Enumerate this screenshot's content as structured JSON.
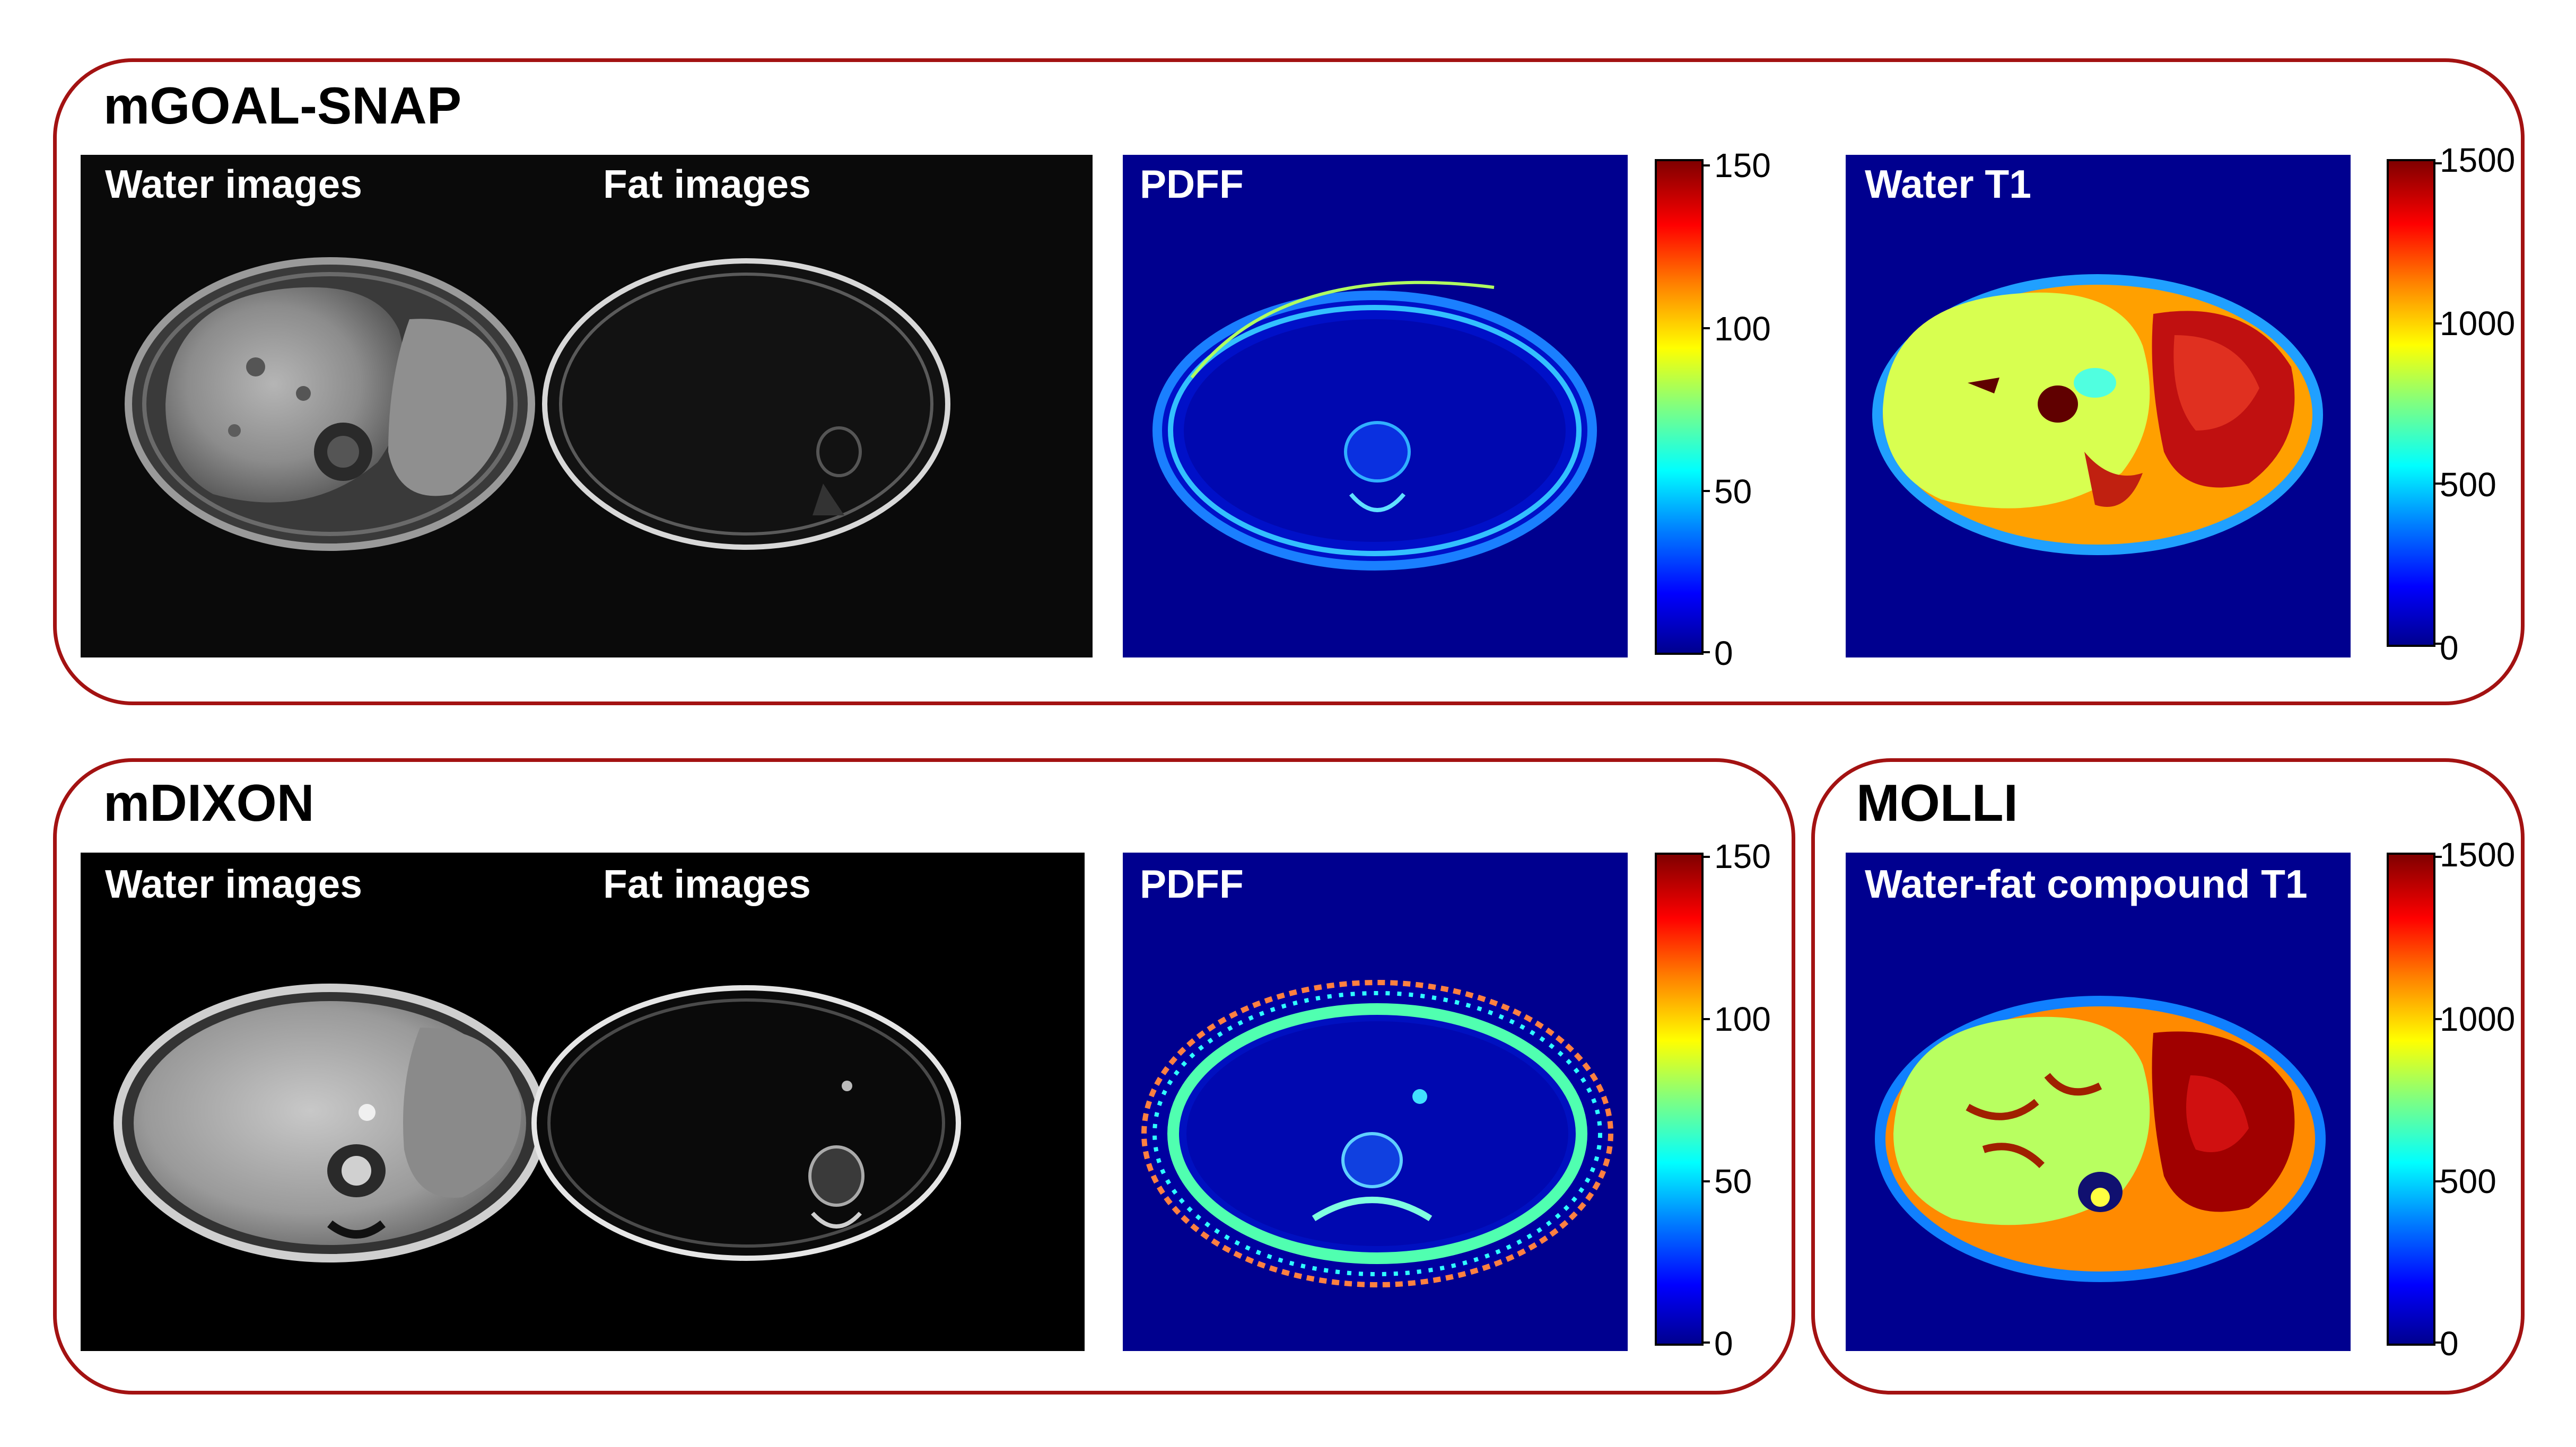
{
  "groups": {
    "goal_snap": {
      "title": "mGOAL-SNAP",
      "water_label": "Water images",
      "fat_label": "Fat images",
      "pdff_label": "PDFF",
      "t1_label": "Water T1",
      "pdff_scale": [
        "150",
        "100",
        "50",
        "0"
      ],
      "t1_scale": [
        "1500",
        "1000",
        "500",
        "0"
      ]
    },
    "mdixon": {
      "title": "mDIXON",
      "water_label": "Water images",
      "fat_label": "Fat images",
      "pdff_label": "PDFF",
      "pdff_scale": [
        "150",
        "100",
        "50",
        "0"
      ]
    },
    "molli": {
      "title": "MOLLI",
      "t1_label": "Water-fat compound T1",
      "t1_scale": [
        "1500",
        "1000",
        "500",
        "0"
      ]
    }
  },
  "colors": {
    "frame": "#a31212",
    "map_background": "#00008f"
  }
}
